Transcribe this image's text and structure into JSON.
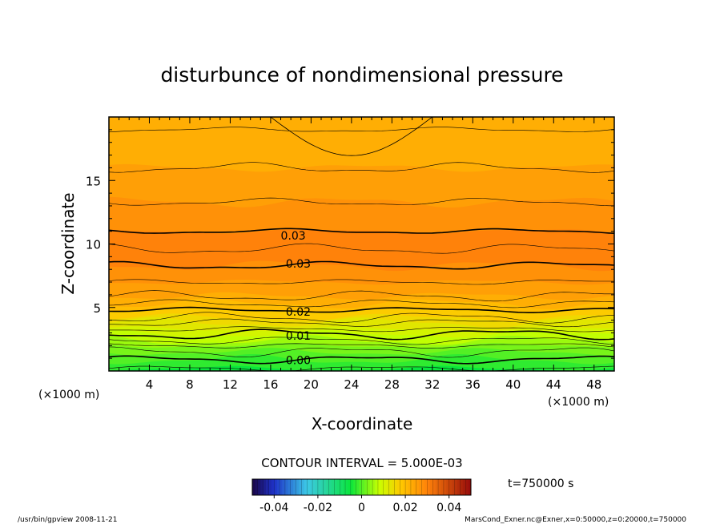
{
  "chart_data": {
    "type": "heatmap",
    "title": "disturbunce of nondimensional pressure",
    "xlabel": "X-coordinate",
    "ylabel": "Z-coordinate",
    "x_unit": "(×1000 m)",
    "y_unit": "(×1000 m)",
    "xlim": [
      0,
      50
    ],
    "ylim": [
      0,
      20
    ],
    "x_ticks": [
      4,
      8,
      12,
      16,
      20,
      24,
      28,
      32,
      36,
      40,
      44,
      48
    ],
    "y_ticks": [
      5,
      10,
      15
    ],
    "contour_interval_text": "CONTOUR INTERVAL = 5.000E-03",
    "contour_labels": [
      {
        "text": "0.03",
        "x": 17,
        "z": 10.6
      },
      {
        "text": "0.03",
        "x": 17.5,
        "z": 8.4
      },
      {
        "text": "0.02",
        "x": 17.5,
        "z": 4.6
      },
      {
        "text": "0.01",
        "x": 17.5,
        "z": 2.7
      },
      {
        "text": "0.00",
        "x": 17.5,
        "z": 0.8
      }
    ],
    "colorbar": {
      "range": [
        -0.05,
        0.05
      ],
      "tick_labels": [
        "-0.04",
        "-0.02",
        "0",
        "0.02",
        "0.04"
      ],
      "tick_values": [
        -0.04,
        -0.02,
        0,
        0.02,
        0.04
      ]
    },
    "time_label": "t=750000 s",
    "grid": false,
    "legend": "colorbar-bottom"
  },
  "footer": {
    "left": "/usr/bin/gpview   2008-11-21",
    "right": "MarsCond_Exner.nc@Exner,x=0:50000,z=0:20000,t=750000"
  }
}
